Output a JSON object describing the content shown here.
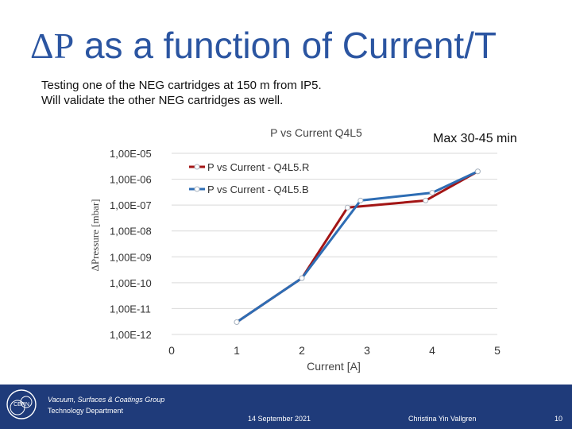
{
  "slide": {
    "title_symbol": "ΔP",
    "title_text": " as a function of Current/T",
    "subtitle_line1": "Testing one of the NEG cartridges at 150 m from IP5.",
    "subtitle_line2": "Will validate the other NEG cartridges as well.",
    "note": "Max 30-45 min"
  },
  "footer": {
    "group_line1": "Vacuum, Surfaces & Coatings Group",
    "group_line2": "Technology Department",
    "date": "14 September 2021",
    "author": "Christina Yin Vallgren",
    "page": "10",
    "logo_text": "CERN",
    "background": "#1f3b7a"
  },
  "chart_data": {
    "type": "line",
    "title": "P vs Current Q4L5",
    "xlabel": "Current [A]",
    "ylabel": "ΔPressure [mbar]",
    "y_scale": "log",
    "xlim": [
      0,
      5
    ],
    "ylim": [
      1e-12,
      1e-05
    ],
    "x_ticks": [
      "0",
      "1",
      "2",
      "3",
      "4",
      "5"
    ],
    "y_ticks": [
      "1,00E-12",
      "1,00E-11",
      "1,00E-10",
      "1,00E-09",
      "1,00E-08",
      "1,00E-07",
      "1,00E-06",
      "1,00E-05"
    ],
    "grid": true,
    "legend_position": "top-left",
    "series": [
      {
        "name": "P vs Current - Q4L5.R",
        "color": "#a31515",
        "x": [
          1.0,
          2.0,
          2.7,
          3.9,
          4.7
        ],
        "y": [
          3e-12,
          1.5e-10,
          8e-08,
          1.5e-07,
          2e-06
        ]
      },
      {
        "name": "P vs Current - Q4L5.B",
        "color": "#2e6db4",
        "x": [
          1.0,
          2.0,
          2.9,
          4.0,
          4.7
        ],
        "y": [
          3e-12,
          1.5e-10,
          1.5e-07,
          3e-07,
          2e-06
        ]
      }
    ]
  }
}
